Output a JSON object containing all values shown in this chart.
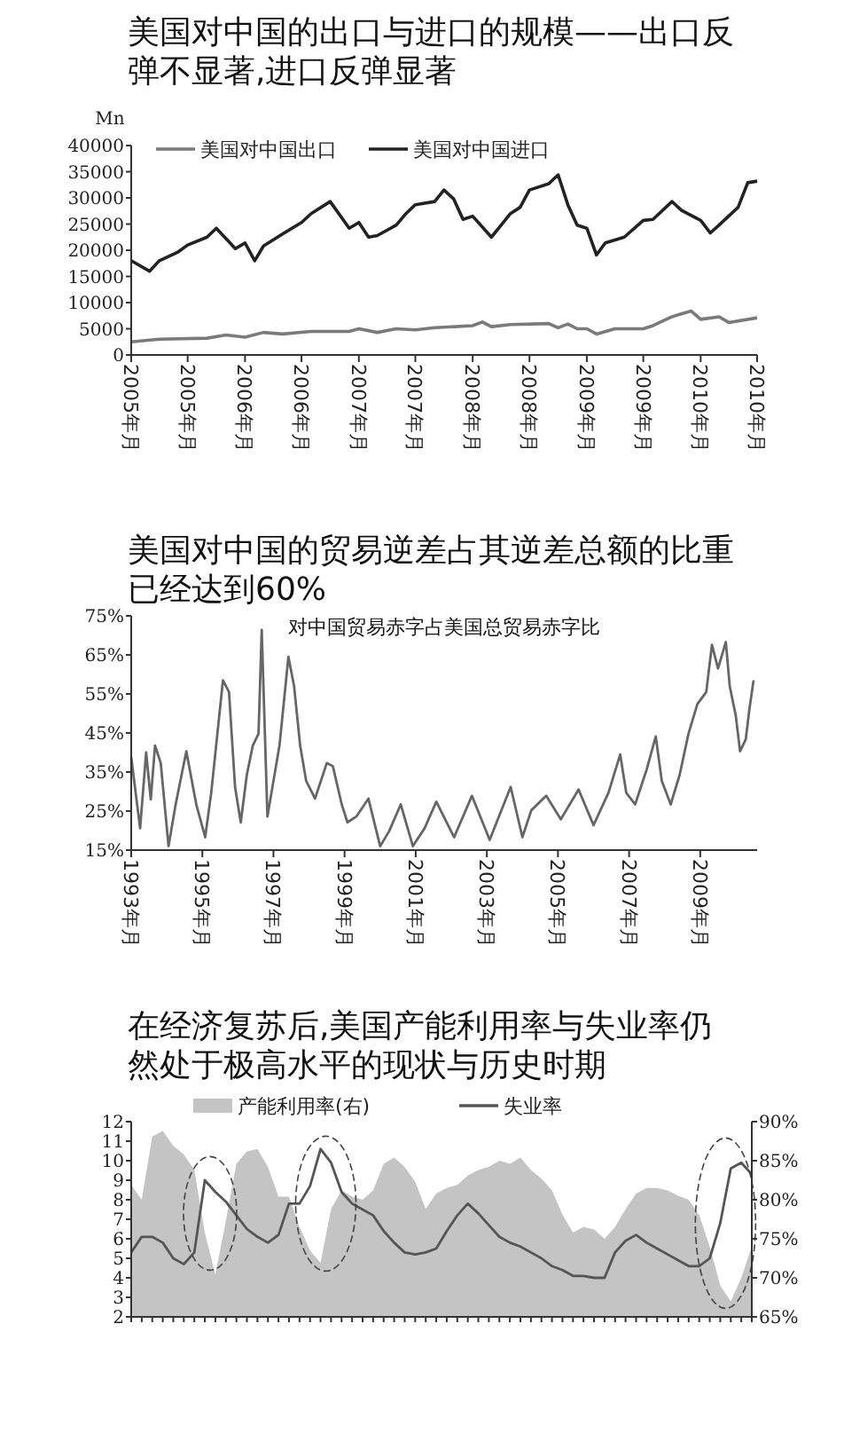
{
  "chart_data": [
    {
      "type": "line",
      "title": "美国对中国的出口与进口的规模——出口反弹不显著,进口反弹显著",
      "ylabel": "Mn",
      "legend": "top left",
      "xlim": [
        "2005-01",
        "2010-07"
      ],
      "xticks": [
        {
          "value": "2005-01",
          "label": "2005年月"
        },
        {
          "value": "2005-07",
          "label": "2005年月"
        },
        {
          "value": "2006-01",
          "label": "2006年月"
        },
        {
          "value": "2006-07",
          "label": "2006年月"
        },
        {
          "value": "2007-01",
          "label": "2007年月"
        },
        {
          "value": "2007-07",
          "label": "2007年月"
        },
        {
          "value": "2008-01",
          "label": "2008年月"
        },
        {
          "value": "2008-07",
          "label": "2008年月"
        },
        {
          "value": "2009-01",
          "label": "2009年月"
        },
        {
          "value": "2009-07",
          "label": "2009年月"
        },
        {
          "value": "2010-01",
          "label": "2010年月"
        },
        {
          "value": "2010-07",
          "label": "2010年月"
        }
      ],
      "ylim": [
        0,
        40000
      ],
      "yticks": [
        0,
        5000,
        10000,
        15000,
        20000,
        25000,
        30000,
        35000,
        40000
      ],
      "series": [
        {
          "name": "美国对中国出口",
          "color": "#7a7a7a",
          "x": [
            "2005-01",
            "2005-04",
            "2005-09",
            "2005-11",
            "2006-01",
            "2006-03",
            "2006-05",
            "2006-08",
            "2006-12",
            "2007-01",
            "2007-03",
            "2007-05",
            "2007-07",
            "2007-09",
            "2008-01",
            "2008-02",
            "2008-03",
            "2008-05",
            "2008-09",
            "2008-10",
            "2008-11",
            "2008-12",
            "2009-01",
            "2009-02",
            "2009-04",
            "2009-07",
            "2009-08",
            "2009-10",
            "2009-12",
            "2010-01",
            "2010-03",
            "2010-04",
            "2010-07"
          ],
          "values": [
            2500,
            3000,
            3200,
            3800,
            3400,
            4300,
            4000,
            4500,
            4500,
            5000,
            4300,
            5000,
            4800,
            5200,
            5600,
            6300,
            5400,
            5800,
            6000,
            5200,
            5900,
            5000,
            5000,
            4000,
            5000,
            5000,
            5600,
            7300,
            8400,
            6800,
            7300,
            6200,
            7100
          ]
        },
        {
          "name": "美国对中国进口",
          "color": "#222222",
          "x": [
            "2005-01",
            "2005-03",
            "2005-04",
            "2005-06",
            "2005-07",
            "2005-09",
            "2005-10",
            "2005-12",
            "2006-01",
            "2006-02",
            "2006-03",
            "2006-05",
            "2006-07",
            "2006-08",
            "2006-10",
            "2006-12",
            "2007-01",
            "2007-02",
            "2007-03",
            "2007-05",
            "2007-06",
            "2007-07",
            "2007-09",
            "2007-10",
            "2007-11",
            "2007-12",
            "2008-01",
            "2008-03",
            "2008-05",
            "2008-06",
            "2008-07",
            "2008-09",
            "2008-10",
            "2008-11",
            "2008-12",
            "2009-01",
            "2009-02",
            "2009-03",
            "2009-05",
            "2009-07",
            "2009-08",
            "2009-10",
            "2009-11",
            "2010-01",
            "2010-02",
            "2010-03",
            "2010-05",
            "2010-06",
            "2010-07"
          ],
          "values": [
            18000,
            16000,
            18000,
            19700,
            21000,
            22500,
            24200,
            20300,
            21400,
            18000,
            20800,
            23100,
            25300,
            27000,
            29300,
            24200,
            25300,
            22500,
            22800,
            24800,
            27000,
            28700,
            29300,
            31500,
            29800,
            25900,
            26500,
            22500,
            27000,
            28200,
            31500,
            32700,
            34400,
            28700,
            24800,
            24200,
            19100,
            21400,
            22500,
            25700,
            25900,
            29300,
            27600,
            25700,
            23300,
            24800,
            28200,
            32900,
            33200
          ]
        }
      ]
    },
    {
      "type": "line",
      "title": "美国对中国的贸易逆差占其逆差总额的比重已经达到60%",
      "subtitle": "对中国贸易赤字占美国总贸易赤字比",
      "xlim": [
        1993,
        2010.6
      ],
      "xticks": [
        {
          "value": 1993,
          "label": "1993年月"
        },
        {
          "value": 1995,
          "label": "1995年月"
        },
        {
          "value": 1997,
          "label": "1997年月"
        },
        {
          "value": 1999,
          "label": "1999年月"
        },
        {
          "value": 2001,
          "label": "2001年月"
        },
        {
          "value": 2003,
          "label": "2003年月"
        },
        {
          "value": 2005,
          "label": "2005年月"
        },
        {
          "value": 2007,
          "label": "2007年月"
        },
        {
          "value": 2009,
          "label": "2009年月"
        }
      ],
      "ylim": [
        15,
        75
      ],
      "yticks": [
        {
          "value": 15,
          "label": "15%"
        },
        {
          "value": 25,
          "label": "25%"
        },
        {
          "value": 35,
          "label": "35%"
        },
        {
          "value": 45,
          "label": "45%"
        },
        {
          "value": 55,
          "label": "55%"
        },
        {
          "value": 65,
          "label": "65%"
        },
        {
          "value": 75,
          "label": "75%"
        }
      ],
      "series": [
        {
          "color": "#666666",
          "x": [
            1993.0,
            1993.25,
            1993.42,
            1993.55,
            1993.67,
            1993.83,
            1994.05,
            1994.25,
            1994.55,
            1994.83,
            1995.08,
            1995.25,
            1995.58,
            1995.75,
            1995.92,
            1996.08,
            1996.25,
            1996.42,
            1996.58,
            1996.67,
            1996.83,
            1997.0,
            1997.17,
            1997.42,
            1997.58,
            1997.75,
            1997.92,
            1998.17,
            1998.5,
            1998.67,
            1998.92,
            1999.08,
            1999.33,
            1999.67,
            2000.0,
            2000.25,
            2000.58,
            2000.92,
            2001.25,
            2001.58,
            2002.08,
            2002.58,
            2003.08,
            2003.67,
            2004.0,
            2004.25,
            2004.67,
            2005.08,
            2005.58,
            2006.0,
            2006.42,
            2006.75,
            2006.92,
            2007.17,
            2007.5,
            2007.75,
            2007.92,
            2008.17,
            2008.42,
            2008.67,
            2008.92,
            2009.17,
            2009.33,
            2009.5,
            2009.72,
            2009.83,
            2010.0,
            2010.12,
            2010.28,
            2010.38,
            2010.5
          ],
          "values": [
            38.8,
            20.6,
            40,
            28,
            41.8,
            37.3,
            16,
            26.7,
            40.3,
            26.7,
            18.3,
            29.7,
            58.5,
            55.5,
            31.2,
            22.1,
            34.2,
            41.8,
            44.8,
            71.4,
            23.6,
            32.7,
            41.8,
            64.5,
            57,
            41.8,
            32.7,
            28.2,
            37.3,
            36.5,
            26.7,
            22.1,
            23.6,
            28.2,
            16,
            19.8,
            26.7,
            16,
            20.6,
            27.4,
            18.3,
            28.9,
            17.6,
            31.2,
            18.3,
            25.2,
            28.9,
            22.9,
            30.5,
            21.4,
            29.7,
            39.5,
            29.7,
            26.7,
            35.8,
            44.1,
            32.7,
            26.7,
            34.2,
            44.8,
            52.4,
            55.5,
            67.6,
            61.5,
            68.3,
            57,
            49.4,
            40.3,
            43.3,
            50.9,
            58.5
          ]
        }
      ]
    },
    {
      "type": "line",
      "title": "在经济复苏后,美国产能利用率与失业率仍然处于极高水平的现状与历史时期",
      "legend": "top",
      "categories": [
        null,
        null,
        null,
        null,
        null,
        null,
        null,
        null,
        null,
        null,
        null,
        null,
        null,
        null,
        null,
        null,
        null,
        null,
        null,
        null,
        null,
        null,
        null,
        null,
        null,
        null,
        null,
        null,
        null,
        null,
        null,
        null,
        null,
        null,
        null,
        null,
        null,
        null,
        null,
        null,
        null,
        null,
        null,
        null,
        null,
        null,
        null,
        null,
        null,
        null,
        null,
        null,
        null,
        null,
        null,
        null,
        null,
        null,
        null,
        null
      ],
      "ylim": [
        2,
        12
      ],
      "yticks": [
        2,
        3,
        4,
        5,
        6,
        7,
        8,
        9,
        10,
        11,
        12
      ],
      "y2lim": [
        65,
        90
      ],
      "y2ticks": [
        {
          "value": 65,
          "label": "65%"
        },
        {
          "value": 70,
          "label": "70%"
        },
        {
          "value": 75,
          "label": "75%"
        },
        {
          "value": 80,
          "label": "80%"
        },
        {
          "value": 85,
          "label": "85%"
        },
        {
          "value": 90,
          "label": "90%"
        }
      ],
      "series": [
        {
          "name": "产能利用率(右)",
          "type": "area",
          "axis": "y2",
          "color": "#c4c4c4",
          "values": [
            81.9,
            80,
            88.1,
            88.8,
            86.9,
            85.8,
            83.8,
            75.8,
            70.4,
            77.3,
            84.6,
            86.2,
            86.5,
            84.2,
            80.4,
            80.4,
            76.5,
            73.5,
            71.9,
            78.8,
            81.2,
            80.4,
            80,
            81.2,
            84.6,
            85.4,
            84.2,
            82.3,
            78.8,
            80.8,
            81.5,
            81.9,
            83.1,
            83.8,
            84.2,
            85,
            84.6,
            85.4,
            83.8,
            82.7,
            81.2,
            78.1,
            75.8,
            76.5,
            76.2,
            75,
            76.5,
            78.8,
            80.8,
            81.5,
            81.5,
            81.2,
            80.5,
            80,
            78,
            74,
            69,
            67,
            70,
            74
          ]
        },
        {
          "name": "失业率",
          "type": "line",
          "color": "#555555",
          "values": [
            5.3,
            6.1,
            6.1,
            5.8,
            5.0,
            4.7,
            5.3,
            9.0,
            8.4,
            7.9,
            7.2,
            6.5,
            6.1,
            5.8,
            6.2,
            7.8,
            7.8,
            8.7,
            10.6,
            9.9,
            8.4,
            7.8,
            7.5,
            7.2,
            6.4,
            5.8,
            5.3,
            5.2,
            5.3,
            5.5,
            6.4,
            7.2,
            7.8,
            7.3,
            6.7,
            6.1,
            5.8,
            5.6,
            5.3,
            5.0,
            4.6,
            4.4,
            4.1,
            4.1,
            4.0,
            4.0,
            5.3,
            5.9,
            6.2,
            5.8,
            5.5,
            5.2,
            4.9,
            4.6,
            4.6,
            5.0,
            6.8,
            9.6,
            9.9,
            9.3
          ]
        }
      ]
    }
  ]
}
